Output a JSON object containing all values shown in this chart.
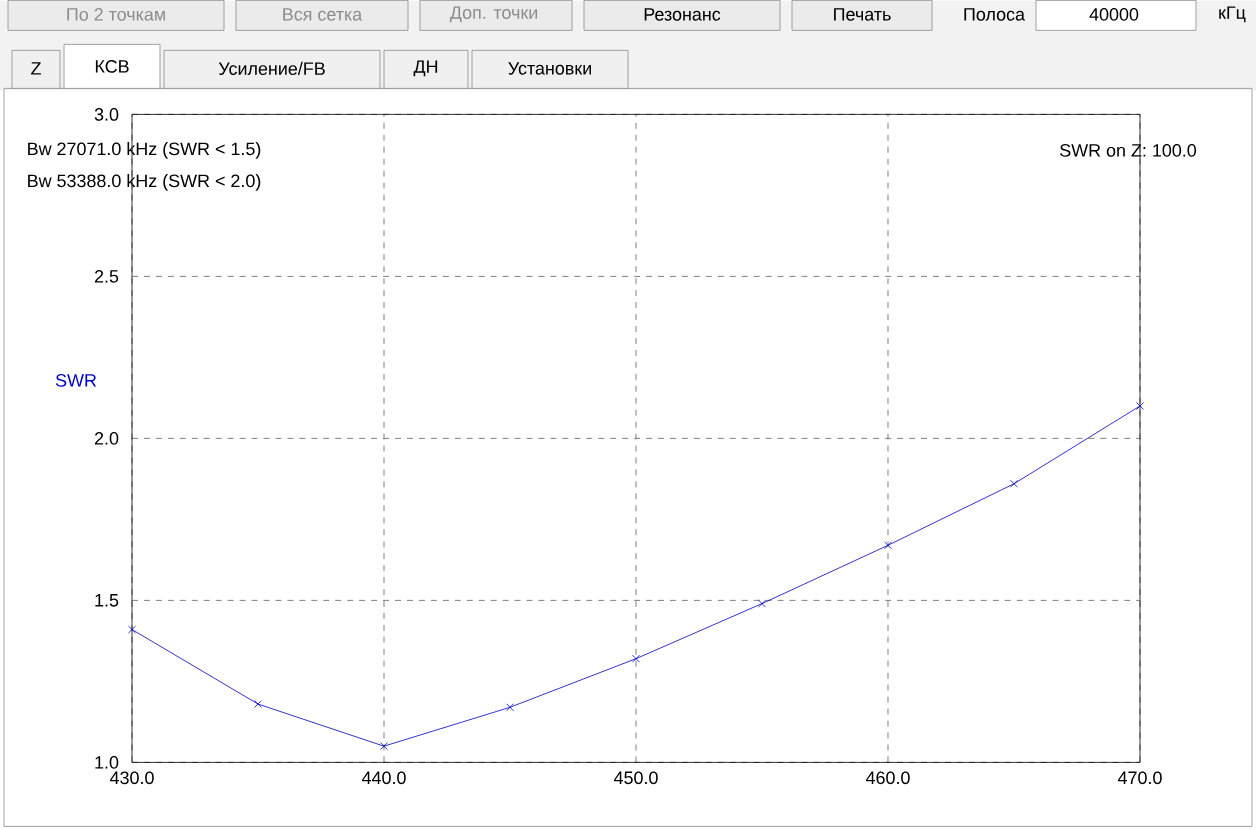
{
  "chart_data": {
    "type": "line",
    "ylabel": "SWR",
    "x": [
      430,
      435,
      440,
      445,
      450,
      455,
      460,
      465,
      470
    ],
    "series": [
      {
        "color": "#0000c0",
        "values": [
          1.41,
          1.18,
          1.05,
          1.17,
          1.32,
          1.49,
          1.67,
          1.86,
          2.1
        ]
      }
    ],
    "xlim": [
      430,
      470
    ],
    "ylim": [
      1.0,
      3.0
    ],
    "xticks": [
      {
        "value": 430,
        "label": "430.0"
      },
      {
        "value": 440,
        "label": "440.0"
      },
      {
        "value": 450,
        "label": "450.0"
      },
      {
        "value": 460,
        "label": "460.0"
      },
      {
        "value": 470,
        "label": "470.0"
      }
    ],
    "yticks": [
      {
        "value": 1.0,
        "label": "1.0"
      },
      {
        "value": 1.5,
        "label": "1.5"
      },
      {
        "value": 2.0,
        "label": "2.0"
      },
      {
        "value": 2.5,
        "label": "2.5"
      },
      {
        "value": 3.0,
        "label": "3.0"
      }
    ],
    "grid": true,
    "marker": "cross",
    "line_style": "solid",
    "annotations": [
      "Bw 27071.0 kHz (SWR < 1.5)",
      "Bw 53388.0 kHz (SWR < 2.0)",
      "SWR on Z: 100.0",
      "Z",
      "КСВ",
      "Усиление/FB",
      "ДН",
      "Установки",
      "По 2 точкам",
      "Вся сетка",
      "Доп. точки",
      "Резонанс",
      "Печать",
      "Полоса",
      "40000",
      "кГц"
    ]
  }
}
